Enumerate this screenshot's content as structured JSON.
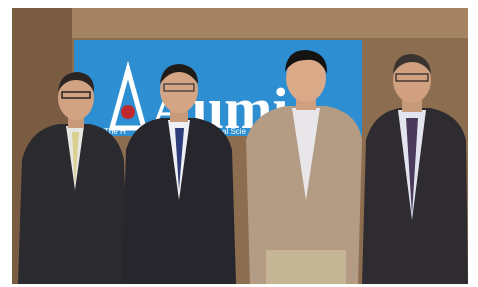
{
  "banner": {
    "title": "Aumi",
    "subtitle_left": "The H",
    "subtitle_right": "al Scie"
  }
}
